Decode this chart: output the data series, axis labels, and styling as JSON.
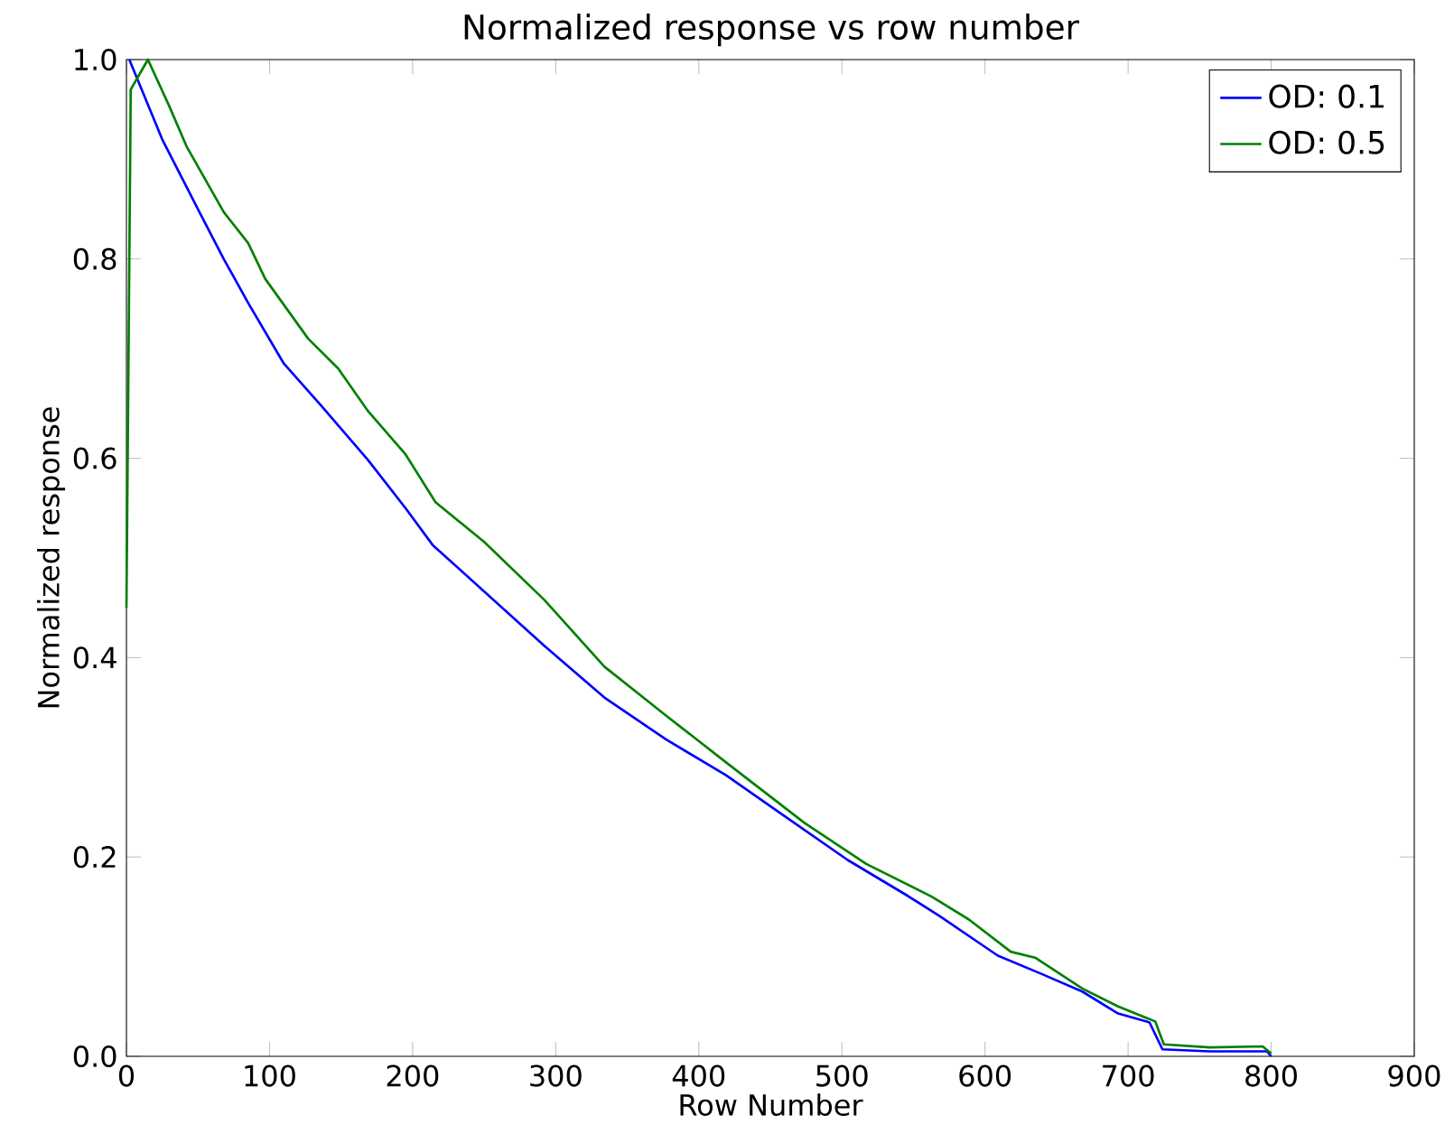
{
  "chart_data": {
    "type": "line",
    "title": "Normalized response vs row number",
    "xlabel": "Row Number",
    "ylabel": "Normalized response",
    "xlim": [
      0,
      900
    ],
    "ylim": [
      0,
      1
    ],
    "xticks": [
      0,
      100,
      200,
      300,
      400,
      500,
      600,
      700,
      800,
      900
    ],
    "yticks": [
      {
        "value": 0,
        "label": "0.0"
      },
      {
        "value": 0.2,
        "label": "0.2"
      },
      {
        "value": 0.4,
        "label": "0.4"
      },
      {
        "value": 0.6,
        "label": "0.6"
      },
      {
        "value": 0.8,
        "label": "0.8"
      },
      {
        "value": 1,
        "label": "1.0"
      }
    ],
    "legend": "top right",
    "grid": false,
    "series": [
      {
        "name": "OD: 0.1",
        "color": "#0000ff",
        "x": [
          2,
          25,
          51,
          68,
          85,
          110,
          136,
          169,
          195,
          214,
          292,
          334,
          377,
          419,
          461,
          504,
          546,
          568,
          609,
          639,
          668,
          693,
          715,
          724,
          757,
          797,
          800
        ],
        "values": [
          1.0,
          0.92,
          0.847,
          0.8,
          0.756,
          0.695,
          0.653,
          0.598,
          0.55,
          0.513,
          0.412,
          0.36,
          0.318,
          0.282,
          0.24,
          0.197,
          0.161,
          0.141,
          0.101,
          0.083,
          0.065,
          0.043,
          0.034,
          0.007,
          0.005,
          0.005,
          0.0
        ]
      },
      {
        "name": "OD: 0.5",
        "color": "#008000",
        "x": [
          0,
          3,
          15,
          30,
          42,
          68,
          85,
          97,
          127,
          148,
          169,
          195,
          216,
          250,
          292,
          334,
          377,
          419,
          474,
          517,
          563,
          589,
          618,
          635,
          668,
          693,
          719,
          725,
          757,
          794,
          800
        ],
        "values": [
          0.45,
          0.97,
          1.0,
          0.953,
          0.913,
          0.847,
          0.816,
          0.78,
          0.72,
          0.69,
          0.647,
          0.604,
          0.556,
          0.516,
          0.458,
          0.391,
          0.342,
          0.295,
          0.234,
          0.193,
          0.16,
          0.137,
          0.105,
          0.099,
          0.068,
          0.05,
          0.035,
          0.012,
          0.009,
          0.01,
          0.003
        ]
      }
    ]
  }
}
